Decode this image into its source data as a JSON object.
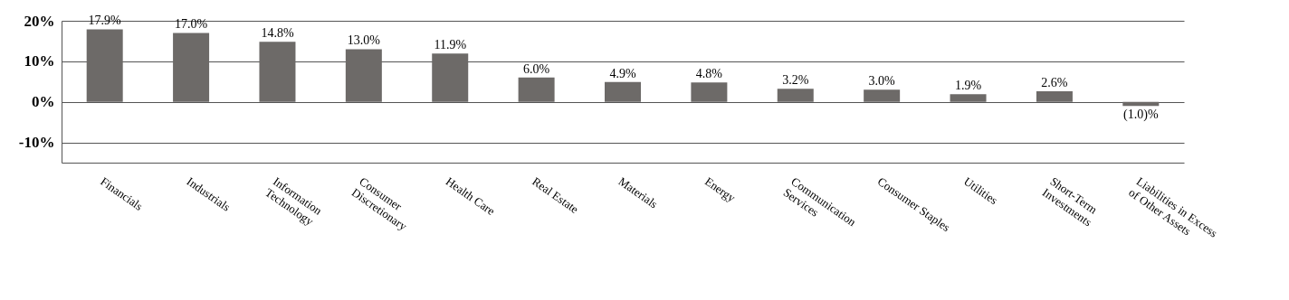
{
  "chart_data": {
    "type": "bar",
    "categories": [
      "Financials",
      "Industrials",
      "Information\nTechnology",
      "Consumer\nDiscretionary",
      "Health Care",
      "Real Estate",
      "Materials",
      "Energy",
      "Communication\nServices",
      "Consumer Staples",
      "Utilities",
      "Short-Term\nInvestments",
      "Liabilities in Excess\nof Other Assets"
    ],
    "values": [
      17.9,
      17.0,
      14.8,
      13.0,
      11.9,
      6.0,
      4.9,
      4.8,
      3.2,
      3.0,
      1.9,
      2.6,
      -1.0
    ],
    "value_labels": [
      "17.9%",
      "17.0%",
      "14.8%",
      "13.0%",
      "11.9%",
      "6.0%",
      "4.9%",
      "4.8%",
      "3.2%",
      "3.0%",
      "1.9%",
      "2.6%",
      "(1.0)%"
    ],
    "color": "#6d6a68",
    "ylim": [
      -15,
      20
    ],
    "yticks": [
      {
        "value": -10,
        "label": "-10%"
      },
      {
        "value": 0,
        "label": "0%"
      },
      {
        "value": 10,
        "label": "10%"
      },
      {
        "value": 20,
        "label": "20%"
      }
    ],
    "grid": "y"
  }
}
